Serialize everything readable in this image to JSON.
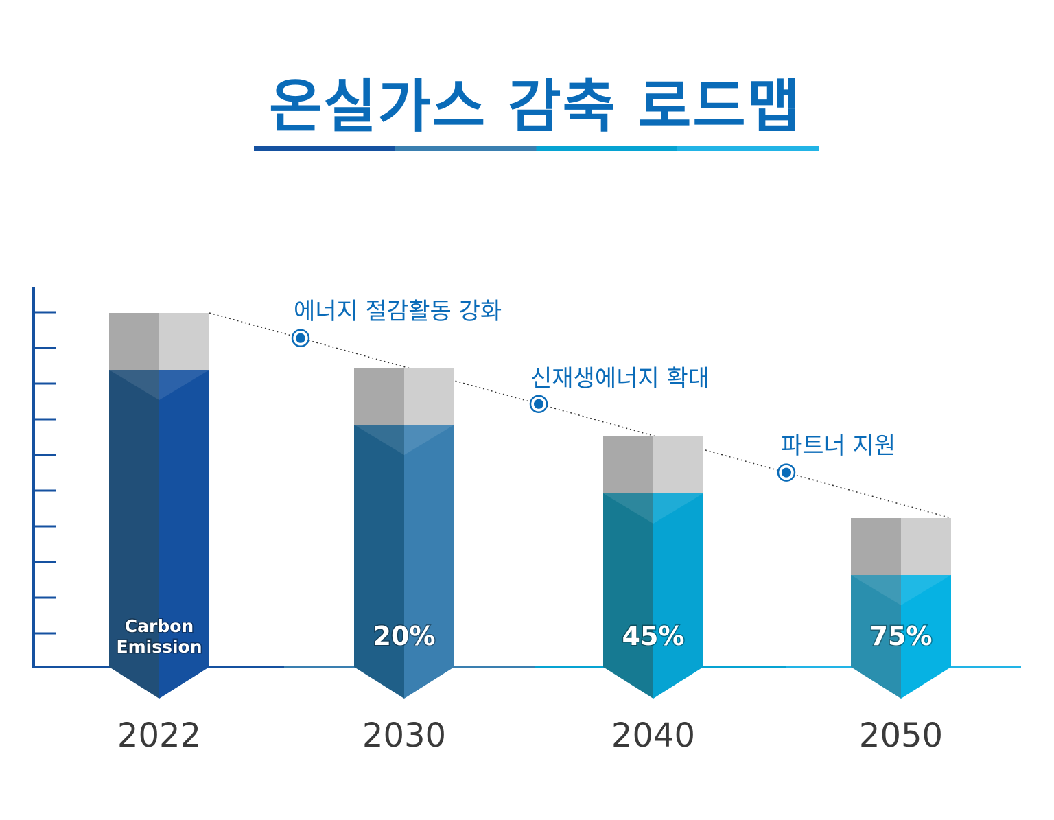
{
  "title": "온실가스 감축 로드맵",
  "chart_data": {
    "type": "bar",
    "title": "온실가스 감축 로드맵",
    "categories": [
      "2022",
      "2030",
      "2040",
      "2050"
    ],
    "reduction_labels": [
      "Carbon Emission",
      "20%",
      "45%",
      "75%"
    ],
    "reduction_percent": [
      0,
      20,
      45,
      75
    ],
    "phases": [
      "에너지 절감활동 강화",
      "신재생에너지 확대",
      "파트너 지원"
    ],
    "xlabel": "",
    "ylabel": "",
    "grid": false,
    "colors": {
      "bar_dark": [
        "#214f78",
        "#1f5f88",
        "#167a92",
        "#2a8fae"
      ],
      "bar_light": [
        "#1551a0",
        "#3a7fb0",
        "#06a3d2",
        "#06b2e3"
      ],
      "axis_segments": [
        "#1551a0",
        "#3a7fb0",
        "#06a3d2",
        "#22b4e6"
      ],
      "cap_left": "#a9a9a9",
      "cap_right": "#cfcfcf",
      "accent": "#0a6bb8"
    }
  }
}
